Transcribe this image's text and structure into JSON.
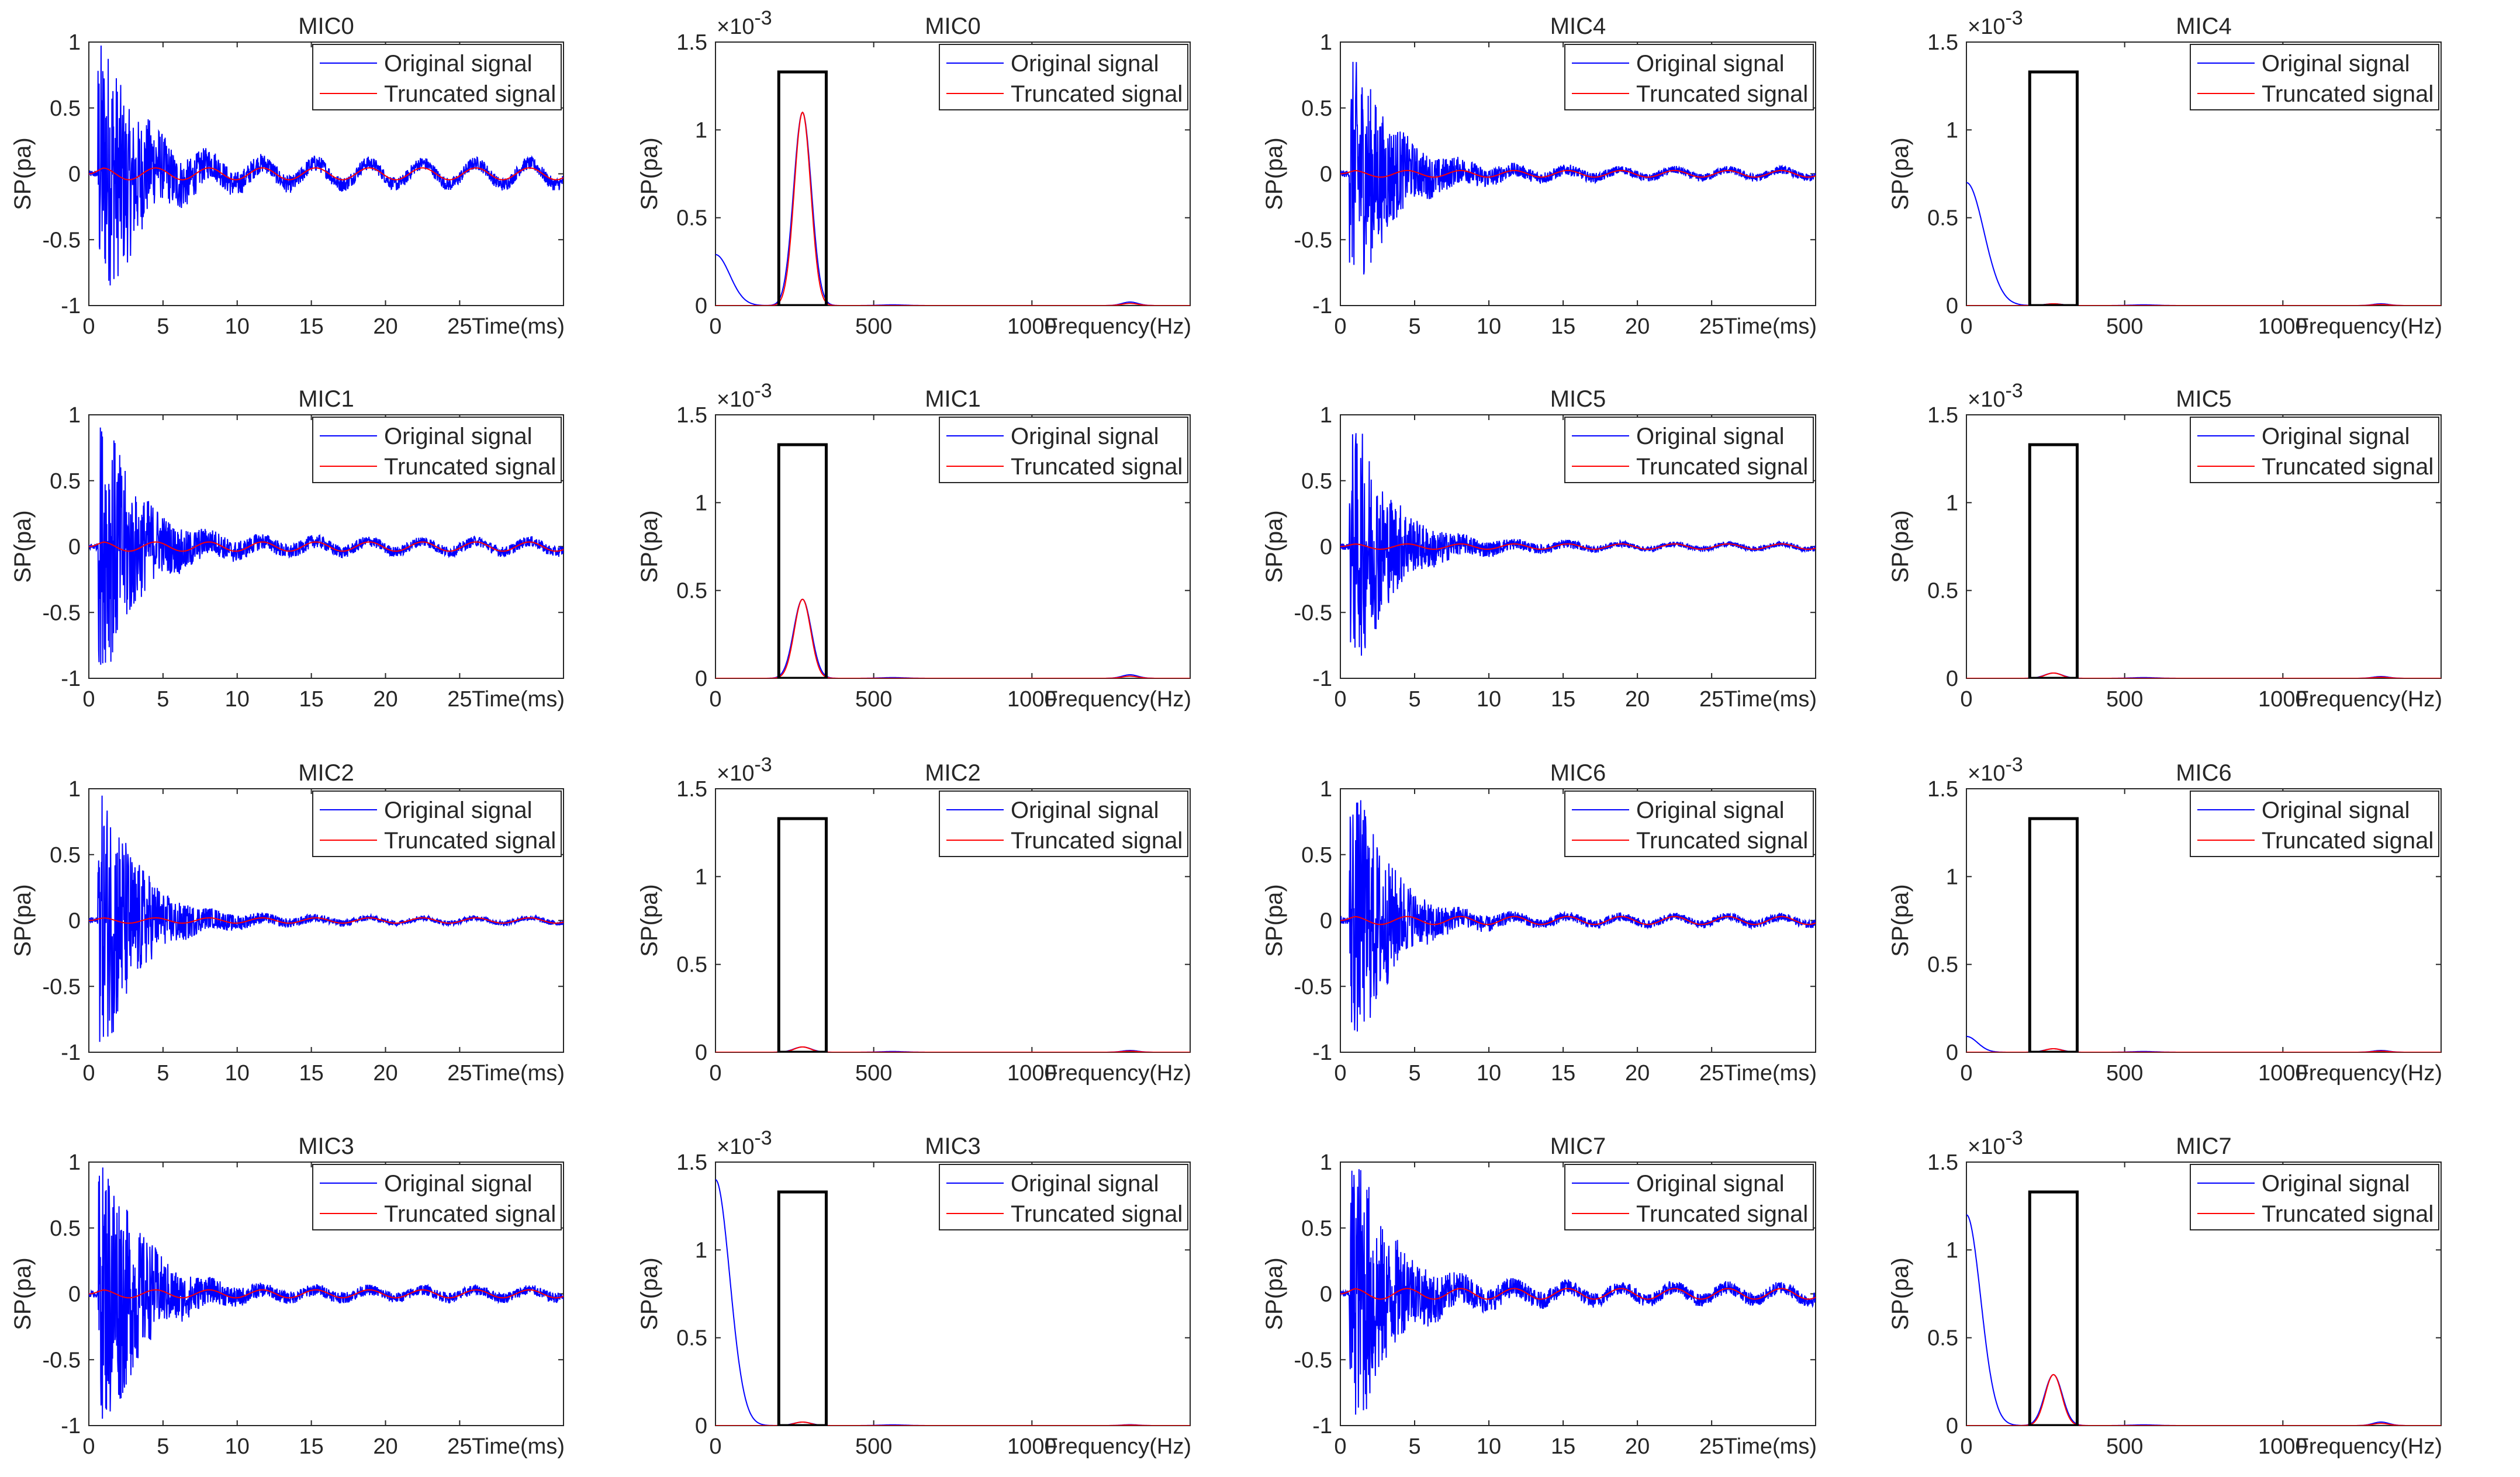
{
  "figure": {
    "description_free": true
  },
  "colors": {
    "original": "#0000ff",
    "truncated": "#ff0000",
    "axes": "#262626",
    "box": "#000000"
  },
  "legend": {
    "original": "Original signal",
    "truncated": "Truncated signal"
  },
  "labels": {
    "ylabel": "SP(pa)",
    "time_xlabel": "Time(ms)",
    "freq_xlabel": "Frequency(Hz)",
    "exponent_base": "×10",
    "exponent_power": "-3"
  },
  "chart_data": [
    {
      "id": "t-mic0",
      "type": "line",
      "title": "MIC0",
      "xlabel": "Time(ms)",
      "ylabel": "SP(pa)",
      "xlim": [
        0,
        32
      ],
      "ylim": [
        -1,
        1
      ],
      "xticks": [
        0,
        5,
        10,
        15,
        20,
        25
      ],
      "yticks": [
        -1,
        -0.5,
        0,
        0.5,
        1
      ],
      "series": [
        {
          "name": "Original signal",
          "env": [
            1.0,
            0.9,
            0.5,
            0.25,
            0.12,
            0.07,
            0.05
          ],
          "osc": 0.08
        },
        {
          "name": "Truncated signal",
          "amp": 0.045,
          "period": 3.6
        }
      ]
    },
    {
      "id": "f-mic0",
      "type": "line",
      "title": "MIC0",
      "xlabel": "Frequency(Hz)",
      "ylabel": "SP(pa)",
      "xlim": [
        0,
        1500
      ],
      "ylim": [
        0,
        1.5
      ],
      "exponent": -3,
      "xticks": [
        0,
        500,
        1000
      ],
      "yticks": [
        0,
        0.5,
        1,
        1.5
      ],
      "box": {
        "x": [
          200,
          350
        ],
        "y_top": 1.33
      },
      "series": [
        {
          "name": "Original signal",
          "low_peak": 0.29,
          "low_width": 45,
          "peak": 1.1,
          "small_peak": 0.02
        },
        {
          "name": "Truncated signal",
          "peak": 1.1
        }
      ]
    },
    {
      "id": "t-mic4",
      "type": "line",
      "title": "MIC4",
      "xlabel": "Time(ms)",
      "ylabel": "SP(pa)",
      "xlim": [
        0,
        32
      ],
      "ylim": [
        -1,
        1
      ],
      "xticks": [
        0,
        5,
        10,
        15,
        20,
        25
      ],
      "yticks": [
        -1,
        -0.5,
        0,
        0.5,
        1
      ],
      "series": [
        {
          "name": "Original signal",
          "env": [
            0.9,
            0.8,
            0.45,
            0.2,
            0.1,
            0.05,
            0.03
          ],
          "osc": 0.03
        },
        {
          "name": "Truncated signal",
          "amp": 0.025,
          "period": 3.6
        }
      ]
    },
    {
      "id": "f-mic4",
      "type": "line",
      "title": "MIC4",
      "xlabel": "Frequency(Hz)",
      "ylabel": "SP(pa)",
      "xlim": [
        0,
        1500
      ],
      "ylim": [
        0,
        1.5
      ],
      "exponent": -3,
      "xticks": [
        0,
        500,
        1000
      ],
      "yticks": [
        0,
        0.5,
        1,
        1.5
      ],
      "box": {
        "x": [
          200,
          350
        ],
        "y_top": 1.33
      },
      "series": [
        {
          "name": "Original signal",
          "low_peak": 0.7,
          "low_width": 55,
          "peak": 0.01,
          "small_peak": 0.01
        },
        {
          "name": "Truncated signal",
          "peak": 0.01
        }
      ]
    },
    {
      "id": "t-mic1",
      "type": "line",
      "title": "MIC1",
      "xlabel": "Time(ms)",
      "ylabel": "SP(pa)",
      "xlim": [
        0,
        32
      ],
      "ylim": [
        -1,
        1
      ],
      "xticks": [
        0,
        5,
        10,
        15,
        20,
        25
      ],
      "yticks": [
        -1,
        -0.5,
        0,
        0.5,
        1
      ],
      "series": [
        {
          "name": "Original signal",
          "env": [
            1.0,
            0.9,
            0.45,
            0.22,
            0.1,
            0.06,
            0.04
          ],
          "osc": 0.04
        },
        {
          "name": "Truncated signal",
          "amp": 0.035,
          "period": 3.6
        }
      ]
    },
    {
      "id": "f-mic1",
      "type": "line",
      "title": "MIC1",
      "xlabel": "Frequency(Hz)",
      "ylabel": "SP(pa)",
      "xlim": [
        0,
        1500
      ],
      "ylim": [
        0,
        1.5
      ],
      "exponent": -3,
      "xticks": [
        0,
        500,
        1000
      ],
      "yticks": [
        0,
        0.5,
        1,
        1.5
      ],
      "box": {
        "x": [
          200,
          350
        ],
        "y_top": 1.33
      },
      "series": [
        {
          "name": "Original signal",
          "low_peak": 0.0,
          "low_width": 45,
          "peak": 0.45,
          "small_peak": 0.02
        },
        {
          "name": "Truncated signal",
          "peak": 0.45
        }
      ]
    },
    {
      "id": "t-mic5",
      "type": "line",
      "title": "MIC5",
      "xlabel": "Time(ms)",
      "ylabel": "SP(pa)",
      "xlim": [
        0,
        32
      ],
      "ylim": [
        -1,
        1
      ],
      "xticks": [
        0,
        5,
        10,
        15,
        20,
        25
      ],
      "yticks": [
        -1,
        -0.5,
        0,
        0.5,
        1
      ],
      "series": [
        {
          "name": "Original signal",
          "env": [
            0.9,
            0.85,
            0.45,
            0.2,
            0.08,
            0.04,
            0.02
          ],
          "osc": 0.02
        },
        {
          "name": "Truncated signal",
          "amp": 0.02,
          "period": 3.6
        }
      ]
    },
    {
      "id": "f-mic5",
      "type": "line",
      "title": "MIC5",
      "xlabel": "Frequency(Hz)",
      "ylabel": "SP(pa)",
      "xlim": [
        0,
        1500
      ],
      "ylim": [
        0,
        1.5
      ],
      "exponent": -3,
      "xticks": [
        0,
        500,
        1000
      ],
      "yticks": [
        0,
        0.5,
        1,
        1.5
      ],
      "box": {
        "x": [
          200,
          350
        ],
        "y_top": 1.33
      },
      "series": [
        {
          "name": "Original signal",
          "low_peak": 0.0,
          "low_width": 45,
          "peak": 0.03,
          "small_peak": 0.01
        },
        {
          "name": "Truncated signal",
          "peak": 0.03
        }
      ]
    },
    {
      "id": "t-mic2",
      "type": "line",
      "title": "MIC2",
      "xlabel": "Time(ms)",
      "ylabel": "SP(pa)",
      "xlim": [
        0,
        32
      ],
      "ylim": [
        -1,
        1
      ],
      "xticks": [
        0,
        5,
        10,
        15,
        20,
        25
      ],
      "yticks": [
        -1,
        -0.5,
        0,
        0.5,
        1
      ],
      "series": [
        {
          "name": "Original signal",
          "env": [
            1.0,
            0.9,
            0.5,
            0.2,
            0.08,
            0.04,
            0.02
          ],
          "osc": 0.02
        },
        {
          "name": "Truncated signal",
          "amp": 0.02,
          "period": 3.6
        }
      ]
    },
    {
      "id": "f-mic2",
      "type": "line",
      "title": "MIC2",
      "xlabel": "Frequency(Hz)",
      "ylabel": "SP(pa)",
      "xlim": [
        0,
        1500
      ],
      "ylim": [
        0,
        1.5
      ],
      "exponent": -3,
      "xticks": [
        0,
        500,
        1000
      ],
      "yticks": [
        0,
        0.5,
        1,
        1.5
      ],
      "box": {
        "x": [
          200,
          350
        ],
        "y_top": 1.33
      },
      "series": [
        {
          "name": "Original signal",
          "low_peak": 0.0,
          "low_width": 45,
          "peak": 0.03,
          "small_peak": 0.01
        },
        {
          "name": "Truncated signal",
          "peak": 0.03
        }
      ]
    },
    {
      "id": "t-mic6",
      "type": "line",
      "title": "MIC6",
      "xlabel": "Time(ms)",
      "ylabel": "SP(pa)",
      "xlim": [
        0,
        32
      ],
      "ylim": [
        -1,
        1
      ],
      "xticks": [
        0,
        5,
        10,
        15,
        20,
        25
      ],
      "yticks": [
        -1,
        -0.5,
        0,
        0.5,
        1
      ],
      "series": [
        {
          "name": "Original signal",
          "env": [
            1.0,
            0.9,
            0.5,
            0.2,
            0.08,
            0.04,
            0.03
          ],
          "osc": 0.03
        },
        {
          "name": "Truncated signal",
          "amp": 0.03,
          "period": 3.6
        }
      ]
    },
    {
      "id": "f-mic6",
      "type": "line",
      "title": "MIC6",
      "xlabel": "Frequency(Hz)",
      "ylabel": "SP(pa)",
      "xlim": [
        0,
        1500
      ],
      "ylim": [
        0,
        1.5
      ],
      "exponent": -3,
      "xticks": [
        0,
        500,
        1000
      ],
      "yticks": [
        0,
        0.5,
        1,
        1.5
      ],
      "box": {
        "x": [
          200,
          350
        ],
        "y_top": 1.33
      },
      "series": [
        {
          "name": "Original signal",
          "low_peak": 0.09,
          "low_width": 35,
          "peak": 0.02,
          "small_peak": 0.01
        },
        {
          "name": "Truncated signal",
          "peak": 0.02
        }
      ]
    },
    {
      "id": "t-mic3",
      "type": "line",
      "title": "MIC3",
      "xlabel": "Time(ms)",
      "ylabel": "SP(pa)",
      "xlim": [
        0,
        32
      ],
      "ylim": [
        -1,
        1
      ],
      "xticks": [
        0,
        5,
        10,
        15,
        20,
        25
      ],
      "yticks": [
        -1,
        -0.5,
        0,
        0.5,
        1
      ],
      "series": [
        {
          "name": "Original signal",
          "env": [
            0.95,
            1.0,
            0.55,
            0.25,
            0.1,
            0.05,
            0.04
          ],
          "osc": 0.03
        },
        {
          "name": "Truncated signal",
          "amp": 0.03,
          "period": 3.6
        }
      ]
    },
    {
      "id": "f-mic3",
      "type": "line",
      "title": "MIC3",
      "xlabel": "Frequency(Hz)",
      "ylabel": "SP(pa)",
      "xlim": [
        0,
        1500
      ],
      "ylim": [
        0,
        1.5
      ],
      "exponent": -3,
      "xticks": [
        0,
        500,
        1000
      ],
      "yticks": [
        0,
        0.5,
        1,
        1.5
      ],
      "box": {
        "x": [
          200,
          350
        ],
        "y_top": 1.33
      },
      "series": [
        {
          "name": "Original signal",
          "low_peak": 1.4,
          "low_width": 45,
          "peak": 0.02,
          "small_peak": 0.005
        },
        {
          "name": "Truncated signal",
          "peak": 0.02
        }
      ]
    },
    {
      "id": "t-mic7",
      "type": "line",
      "title": "MIC7",
      "xlabel": "Time(ms)",
      "ylabel": "SP(pa)",
      "xlim": [
        0,
        32
      ],
      "ylim": [
        -1,
        1
      ],
      "xticks": [
        0,
        5,
        10,
        15,
        20,
        25
      ],
      "yticks": [
        -1,
        -0.5,
        0,
        0.5,
        1
      ],
      "series": [
        {
          "name": "Original signal",
          "env": [
            0.95,
            1.0,
            0.5,
            0.25,
            0.12,
            0.07,
            0.05
          ],
          "osc": 0.05
        },
        {
          "name": "Truncated signal",
          "amp": 0.04,
          "period": 3.6
        }
      ]
    },
    {
      "id": "f-mic7",
      "type": "line",
      "title": "MIC7",
      "xlabel": "Frequency(Hz)",
      "ylabel": "SP(pa)",
      "xlim": [
        0,
        1500
      ],
      "ylim": [
        0,
        1.5
      ],
      "exponent": -3,
      "xticks": [
        0,
        500,
        1000
      ],
      "yticks": [
        0,
        0.5,
        1,
        1.5
      ],
      "box": {
        "x": [
          200,
          350
        ],
        "y_top": 1.33
      },
      "series": [
        {
          "name": "Original signal",
          "low_peak": 1.2,
          "low_width": 45,
          "peak": 0.29,
          "small_peak": 0.02
        },
        {
          "name": "Truncated signal",
          "peak": 0.29
        }
      ]
    }
  ]
}
